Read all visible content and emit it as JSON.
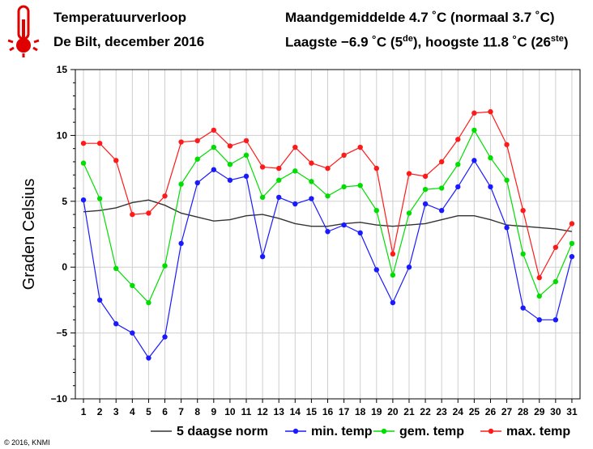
{
  "header": {
    "title": "Temperatuurverloop",
    "subtitle": "De Bilt, december 2016",
    "stat_line_1": "Maandgemiddelde 4.7 ˚C (normaal 3.7 ˚C)",
    "stat_line_2_pre": "Laagste −6.9 ˚C (5",
    "stat_line_2_sup1": "de",
    "stat_line_2_mid": "), hoogste 11.8 ˚C (26",
    "stat_line_2_sup2": "ste",
    "stat_line_2_post": ")"
  },
  "footer": {
    "copyright": "© 2016, KNMI"
  },
  "chart_data": {
    "type": "line",
    "ylabel": "Graden Celsius",
    "ylim": [
      -10,
      15
    ],
    "yticks": [
      -10,
      -5,
      0,
      5,
      10,
      15
    ],
    "ytick_labels": [
      "−10",
      "−5",
      "0",
      "5",
      "10",
      "15"
    ],
    "x": [
      1,
      2,
      3,
      4,
      5,
      6,
      7,
      8,
      9,
      10,
      11,
      12,
      13,
      14,
      15,
      16,
      17,
      18,
      19,
      20,
      21,
      22,
      23,
      24,
      25,
      26,
      27,
      28,
      29,
      30,
      31
    ],
    "grid": true,
    "legend_position": "bottom",
    "series": [
      {
        "name": "5 daagse norm",
        "color": "#333333",
        "markers": false,
        "values": [
          4.2,
          4.3,
          4.5,
          4.9,
          5.1,
          4.7,
          4.1,
          3.8,
          3.5,
          3.6,
          3.9,
          4.0,
          3.7,
          3.3,
          3.1,
          3.1,
          3.3,
          3.4,
          3.2,
          3.1,
          3.2,
          3.3,
          3.6,
          3.9,
          3.9,
          3.6,
          3.2,
          3.1,
          3.0,
          2.9,
          2.7
        ]
      },
      {
        "name": "min. temp",
        "color": "#1a1aff",
        "markers": true,
        "values": [
          5.1,
          -2.5,
          -4.3,
          -5.0,
          -6.9,
          -5.3,
          1.8,
          6.4,
          7.4,
          6.6,
          6.9,
          0.8,
          5.3,
          4.8,
          5.2,
          2.7,
          3.2,
          2.6,
          -0.2,
          -2.7,
          0.0,
          4.8,
          4.3,
          6.1,
          8.1,
          6.1,
          3.0,
          -3.1,
          -4.0,
          -4.0,
          0.8
        ]
      },
      {
        "name": "gem. temp",
        "color": "#00dd00",
        "markers": true,
        "values": [
          7.9,
          5.2,
          -0.1,
          -1.4,
          -2.7,
          0.1,
          6.3,
          8.2,
          9.1,
          7.8,
          8.5,
          5.3,
          6.6,
          7.3,
          6.5,
          5.4,
          6.1,
          6.2,
          4.3,
          -0.6,
          4.1,
          5.9,
          6.0,
          7.8,
          10.4,
          8.3,
          6.6,
          1.0,
          -2.2,
          -1.1,
          1.8
        ]
      },
      {
        "name": "max. temp",
        "color": "#ff1a1a",
        "markers": true,
        "values": [
          9.4,
          9.4,
          8.1,
          4.0,
          4.1,
          5.4,
          9.5,
          9.6,
          10.4,
          9.2,
          9.6,
          7.6,
          7.5,
          9.1,
          7.9,
          7.5,
          8.5,
          9.1,
          7.5,
          1.0,
          7.1,
          6.9,
          8.0,
          9.7,
          11.7,
          11.8,
          9.3,
          4.3,
          -0.8,
          1.5,
          3.3
        ]
      }
    ]
  }
}
